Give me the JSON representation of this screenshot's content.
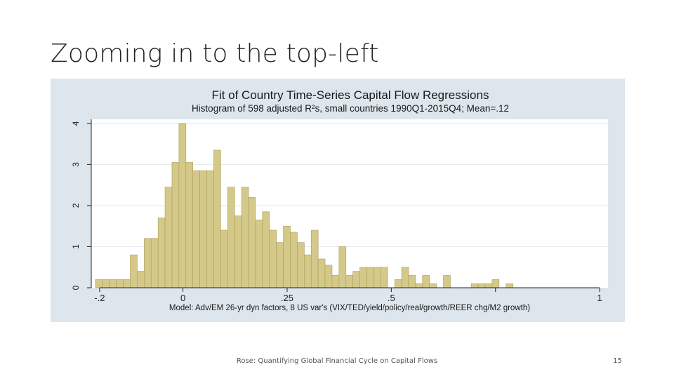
{
  "slide": {
    "title": "Zooming in to the top-left",
    "footer": "Rose: Quantifying Global Financial Cycle on Capital Flows",
    "page_number": "15"
  },
  "colors": {
    "panel_bg": "#dde6ec",
    "plot_bg": "#ffffff",
    "bar_fill": "#d4c989",
    "bar_stroke": "#a99e59",
    "text": "#1a1a1a"
  },
  "chart_data": {
    "type": "bar",
    "title": "Fit of Country Time-Series Capital Flow Regressions",
    "subtitle": "Histogram of 598 adjusted R²s, small countries 1990Q1-2015Q4; Mean=.12",
    "xlabel": "Model: Adv/EM 26-yr dyn factors, 8 US var's (VIX/TED/yield/policy/real/growth/REER chg/M2 growth)",
    "ylabel": "",
    "xlim": [
      -0.22,
      1.02
    ],
    "ylim": [
      0,
      4.1
    ],
    "x_ticks": [
      -0.2,
      0,
      0.25,
      0.5,
      0.75,
      1
    ],
    "x_tick_labels": [
      "-.2",
      "0",
      ".25",
      ".5",
      "",
      "1"
    ],
    "y_ticks": [
      0,
      1,
      2,
      3,
      4
    ],
    "y_tick_labels": [
      "0",
      "1",
      "2",
      "3",
      "4"
    ],
    "grid": true,
    "bin_start": -0.21,
    "bin_width": 0.0167,
    "values": [
      0.2,
      0.2,
      0.2,
      0.2,
      0.2,
      0.8,
      0.4,
      1.2,
      1.2,
      1.7,
      2.45,
      3.05,
      4.0,
      3.05,
      2.85,
      2.85,
      2.85,
      3.35,
      1.4,
      2.45,
      1.75,
      2.45,
      2.2,
      1.65,
      1.85,
      1.4,
      1.1,
      1.5,
      1.35,
      1.1,
      0.8,
      1.4,
      0.7,
      0.55,
      0.3,
      1.0,
      0.3,
      0.4,
      0.5,
      0.5,
      0.5,
      0.5,
      0,
      0.2,
      0.5,
      0.3,
      0.1,
      0.3,
      0.1,
      0,
      0.3,
      0,
      0,
      0,
      0.1,
      0.1,
      0.1,
      0.2,
      0,
      0.1
    ]
  }
}
